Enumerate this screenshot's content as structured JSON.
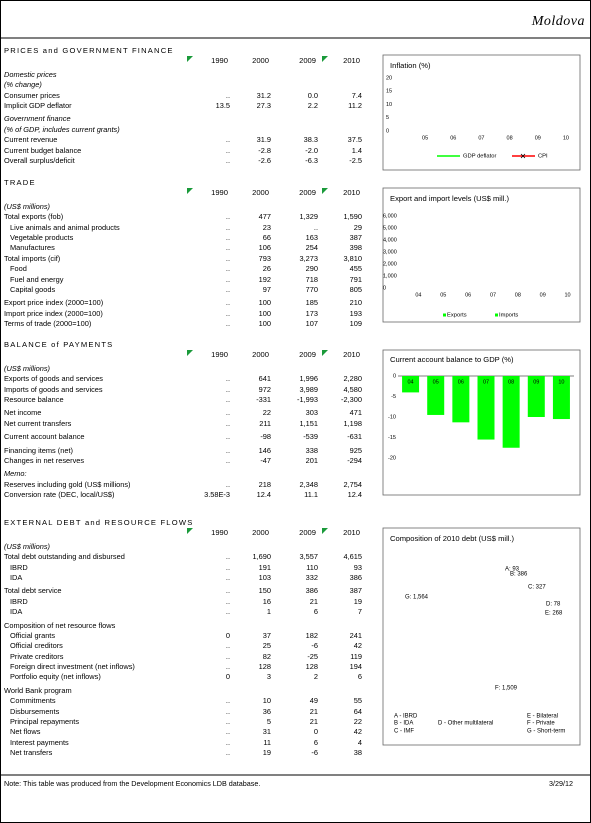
{
  "header": {
    "country": "Moldova"
  },
  "sections": [
    {
      "title": "PRICES and GOVERNMENT FINANCE",
      "columns": [
        "1990",
        "2000",
        "2009",
        "2010"
      ],
      "blocks": [
        [
          {
            "label": "Domestic prices",
            "kind": "group"
          },
          {
            "label": "(% change)",
            "kind": "group"
          },
          {
            "label": "Consumer prices",
            "values": [
              "..",
              "31.2",
              "0.0",
              "7.4"
            ]
          },
          {
            "label": "Implicit GDP deflator",
            "values": [
              "13.5",
              "27.3",
              "2.2",
              "11.2"
            ]
          }
        ],
        [
          {
            "label": "Government finance",
            "kind": "group"
          },
          {
            "label": "(% of GDP, includes current grants)",
            "kind": "group"
          },
          {
            "label": "Current revenue",
            "values": [
              "..",
              "31.9",
              "38.3",
              "37.5"
            ]
          },
          {
            "label": "Current budget balance",
            "values": [
              "..",
              "-2.8",
              "-2.0",
              "1.4"
            ]
          },
          {
            "label": "Overall surplus/deficit",
            "values": [
              "..",
              "-2.6",
              "-6.3",
              "-2.5"
            ]
          }
        ]
      ]
    },
    {
      "title": "TRADE",
      "columns": [
        "1990",
        "2000",
        "2009",
        "2010"
      ],
      "blocks": [
        [
          {
            "label": "(US$ millions)",
            "kind": "group"
          },
          {
            "label": "Total exports (fob)",
            "values": [
              "..",
              "477",
              "1,329",
              "1,590"
            ]
          },
          {
            "label": "Live animals and animal products",
            "kind": "indent",
            "values": [
              "..",
              "23",
              "..",
              "29"
            ]
          },
          {
            "label": "Vegetable products",
            "kind": "indent",
            "values": [
              "..",
              "66",
              "163",
              "387"
            ]
          },
          {
            "label": "Manufactures",
            "kind": "indent",
            "values": [
              "..",
              "106",
              "254",
              "398"
            ]
          },
          {
            "label": "Total imports (cif)",
            "values": [
              "..",
              "793",
              "3,273",
              "3,810"
            ]
          },
          {
            "label": "Food",
            "kind": "indent",
            "values": [
              "..",
              "26",
              "290",
              "455"
            ]
          },
          {
            "label": "Fuel and energy",
            "kind": "indent",
            "values": [
              "..",
              "192",
              "718",
              "791"
            ]
          },
          {
            "label": "Capital goods",
            "kind": "indent",
            "values": [
              "..",
              "97",
              "770",
              "805"
            ]
          }
        ],
        [
          {
            "label": "Export price index (2000=100)",
            "values": [
              "..",
              "100",
              "185",
              "210"
            ]
          },
          {
            "label": "Import price index (2000=100)",
            "values": [
              "..",
              "100",
              "173",
              "193"
            ]
          },
          {
            "label": "Terms of trade (2000=100)",
            "values": [
              "..",
              "100",
              "107",
              "109"
            ]
          }
        ]
      ]
    },
    {
      "title": "BALANCE of PAYMENTS",
      "columns": [
        "1990",
        "2000",
        "2009",
        "2010"
      ],
      "blocks": [
        [
          {
            "label": "(US$ millions)",
            "kind": "group"
          },
          {
            "label": "Exports of goods and services",
            "values": [
              "..",
              "641",
              "1,996",
              "2,280"
            ]
          },
          {
            "label": "Imports of goods and services",
            "values": [
              "..",
              "972",
              "3,989",
              "4,580"
            ]
          },
          {
            "label": "Resource balance",
            "values": [
              "..",
              "-331",
              "-1,993",
              "-2,300"
            ]
          }
        ],
        [
          {
            "label": "Net income",
            "values": [
              "..",
              "22",
              "303",
              "471"
            ]
          },
          {
            "label": "Net current transfers",
            "values": [
              "..",
              "211",
              "1,151",
              "1,198"
            ]
          }
        ],
        [
          {
            "label": "Current account balance",
            "values": [
              "..",
              "-98",
              "-539",
              "-631"
            ]
          }
        ],
        [
          {
            "label": "Financing items (net)",
            "values": [
              "..",
              "146",
              "338",
              "925"
            ]
          },
          {
            "label": "Changes in net reserves",
            "values": [
              "..",
              "-47",
              "201",
              "-294"
            ]
          }
        ],
        [
          {
            "label": "Memo:",
            "kind": "group"
          },
          {
            "label": "Reserves including gold (US$ millions)",
            "values": [
              "..",
              "218",
              "2,348",
              "2,754"
            ]
          },
          {
            "label": "Conversion rate (DEC, local/US$)",
            "values": [
              "3.58E-3",
              "12.4",
              "11.1",
              "12.4"
            ]
          }
        ]
      ]
    },
    {
      "title": "EXTERNAL DEBT and RESOURCE FLOWS",
      "columns": [
        "1990",
        "2000",
        "2009",
        "2010"
      ],
      "blocks": [
        [
          {
            "label": "(US$ millions)",
            "kind": "group"
          },
          {
            "label": "Total debt outstanding and disbursed",
            "values": [
              "..",
              "1,690",
              "3,557",
              "4,615"
            ]
          },
          {
            "label": "IBRD",
            "kind": "indent",
            "values": [
              "..",
              "191",
              "110",
              "93"
            ]
          },
          {
            "label": "IDA",
            "kind": "indent",
            "values": [
              "..",
              "103",
              "332",
              "386"
            ]
          }
        ],
        [
          {
            "label": "Total debt service",
            "values": [
              "..",
              "150",
              "386",
              "387"
            ]
          },
          {
            "label": "IBRD",
            "kind": "indent",
            "values": [
              "..",
              "16",
              "21",
              "19"
            ]
          },
          {
            "label": "IDA",
            "kind": "indent",
            "values": [
              "..",
              "1",
              "6",
              "7"
            ]
          }
        ],
        [
          {
            "label": "Composition of net resource flows"
          },
          {
            "label": "Official grants",
            "kind": "indent",
            "values": [
              "0",
              "37",
              "182",
              "241"
            ]
          },
          {
            "label": "Official creditors",
            "kind": "indent",
            "values": [
              "..",
              "25",
              "-6",
              "42"
            ]
          },
          {
            "label": "Private creditors",
            "kind": "indent",
            "values": [
              "..",
              "82",
              "-25",
              "119"
            ]
          },
          {
            "label": "Foreign direct investment (net inflows)",
            "kind": "indent",
            "values": [
              "..",
              "128",
              "128",
              "194"
            ]
          },
          {
            "label": "Portfolio equity (net inflows)",
            "kind": "indent",
            "values": [
              "0",
              "3",
              "2",
              "6"
            ]
          }
        ],
        [
          {
            "label": "World Bank program"
          },
          {
            "label": "Commitments",
            "kind": "indent",
            "values": [
              "..",
              "10",
              "49",
              "55"
            ]
          },
          {
            "label": "Disbursements",
            "kind": "indent",
            "values": [
              "..",
              "36",
              "21",
              "64"
            ]
          },
          {
            "label": "Principal repayments",
            "kind": "indent",
            "values": [
              "..",
              "5",
              "21",
              "22"
            ]
          },
          {
            "label": "Net flows",
            "kind": "indent",
            "values": [
              "..",
              "31",
              "0",
              "42"
            ]
          },
          {
            "label": "Interest payments",
            "kind": "indent",
            "values": [
              "..",
              "11",
              "6",
              "4"
            ]
          },
          {
            "label": "Net transfers",
            "kind": "indent",
            "values": [
              "..",
              "19",
              "-6",
              "38"
            ]
          }
        ]
      ]
    }
  ],
  "charts": [
    {
      "type": "line",
      "title": "Inflation (%)",
      "categories": [
        "05",
        "06",
        "07",
        "08",
        "09",
        "10"
      ],
      "ylim": [
        0,
        20
      ],
      "yticks": [
        0,
        5,
        10,
        15,
        20
      ],
      "series": [
        {
          "name": "GDP deflator",
          "color": "#00ff00"
        },
        {
          "name": "CPI",
          "color": "#ff0000"
        }
      ]
    },
    {
      "type": "line",
      "title": "Export and import levels (US$ mill.)",
      "categories": [
        "04",
        "05",
        "06",
        "07",
        "08",
        "09",
        "10"
      ],
      "ylim": [
        0,
        6000
      ],
      "yticks": [
        0,
        {
          "value": 1000,
          "label": "1,000"
        },
        {
          "value": 2000,
          "label": "2,000"
        },
        {
          "value": 3000,
          "label": "3,000"
        },
        {
          "value": 4000,
          "label": "4,000"
        },
        {
          "value": 5000,
          "label": "5,000"
        },
        {
          "value": 6000,
          "label": "6,000"
        }
      ],
      "series": [
        {
          "name": "Exports",
          "color": "#00ff00"
        },
        {
          "name": "Imports",
          "color": "#00ff00"
        }
      ]
    },
    {
      "type": "bar",
      "title": "Current account balance to GDP (%)",
      "categories": [
        "04",
        "05",
        "06",
        "07",
        "08",
        "09",
        "10"
      ],
      "values": [
        -4,
        -9.5,
        -11.3,
        -15.5,
        -17.5,
        -10,
        -10.5
      ],
      "color": "#00ff00",
      "ylim": [
        -20,
        0
      ],
      "yticks": [
        0,
        -5,
        -10,
        -15,
        -20
      ]
    },
    {
      "type": "pie",
      "title": "Composition of 2010 debt (US$ mill.)",
      "labels": [
        "A: 93",
        "B: 386",
        "C: 327",
        "D: 78",
        "E: 268",
        "F: 1,509",
        "G: 1,564"
      ],
      "legend": [
        "A - IBRD",
        "B - IDA",
        "C - IMF",
        "D - Other multilateral",
        "E - Bilateral",
        "F - Private",
        "G - Short-term"
      ]
    }
  ],
  "footer": {
    "note": "Note: This table was produced from the Development Economics LDB database.",
    "date": "3/29/12"
  }
}
